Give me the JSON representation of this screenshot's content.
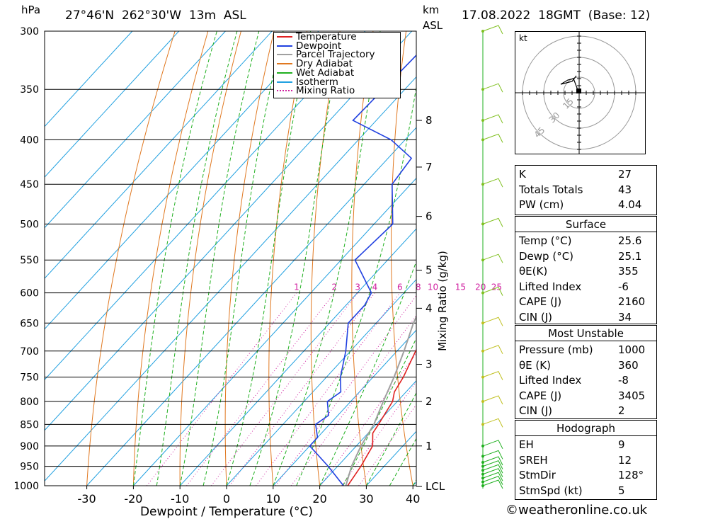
{
  "header": {
    "p_unit": "hPa",
    "location": "27°46'N  262°30'W  13m  ASL",
    "km_unit": "km",
    "km_unit2": "ASL",
    "datetime": "17.08.2022  18GMT  (Base: 12)"
  },
  "chart_data": {
    "type": "line",
    "subtype": "skew-T log-P diagram",
    "xlabel": "Dewpoint / Temperature (°C)",
    "ylabel": "hPa",
    "y_scale": "log",
    "x_ticks": [
      -30,
      -20,
      -10,
      0,
      10,
      20,
      30,
      40
    ],
    "xlim": [
      -40,
      40
    ],
    "ylim": [
      1000,
      300
    ],
    "pressure_levels": [
      300,
      350,
      400,
      450,
      500,
      550,
      600,
      650,
      700,
      750,
      800,
      850,
      900,
      950,
      1000
    ],
    "altitude_km": [
      {
        "km": "8",
        "p": 380
      },
      {
        "km": "7",
        "p": 430
      },
      {
        "km": "6",
        "p": 490
      },
      {
        "km": "5",
        "p": 565
      },
      {
        "km": "4",
        "p": 625
      },
      {
        "km": "3",
        "p": 725
      },
      {
        "km": "2",
        "p": 800
      },
      {
        "km": "1",
        "p": 900
      },
      {
        "km": "LCL",
        "p": 1002
      }
    ],
    "mixing_ratio_label": "Mixing Ratio (g/kg)",
    "mixing_ratio_lines": [
      "1",
      "2",
      "3",
      "4",
      "6",
      "8",
      "10",
      "15",
      "20",
      "25"
    ],
    "series": [
      {
        "name": "Temperature",
        "color": "#e02020",
        "points": [
          [
            26,
            1000
          ],
          [
            25,
            950
          ],
          [
            23.5,
            900
          ],
          [
            21,
            870
          ],
          [
            20.5,
            850
          ],
          [
            19,
            800
          ],
          [
            17.5,
            780
          ],
          [
            16.5,
            750
          ],
          [
            14,
            700
          ],
          [
            11.5,
            650
          ],
          [
            8,
            610
          ],
          [
            6,
            600
          ],
          [
            4,
            550
          ],
          [
            0,
            500
          ],
          [
            -4,
            450
          ],
          [
            -10,
            400
          ],
          [
            -14,
            370
          ],
          [
            -17,
            355
          ],
          [
            -22,
            300
          ]
        ]
      },
      {
        "name": "Dewpoint",
        "color": "#2040e0",
        "points": [
          [
            25.1,
            1000
          ],
          [
            18,
            950
          ],
          [
            10,
            900
          ],
          [
            10,
            880
          ],
          [
            7,
            850
          ],
          [
            8,
            830
          ],
          [
            5,
            800
          ],
          [
            6,
            780
          ],
          [
            3,
            750
          ],
          [
            -1,
            700
          ],
          [
            -6,
            650
          ],
          [
            -6,
            620
          ],
          [
            -7,
            600
          ],
          [
            -17,
            550
          ],
          [
            -16,
            500
          ],
          [
            -24,
            450
          ],
          [
            -25,
            420
          ],
          [
            -33,
            400
          ],
          [
            -45,
            380
          ],
          [
            -44,
            300
          ]
        ]
      },
      {
        "name": "Parcel Trajectory",
        "color": "#a0a0a0",
        "points": [
          [
            25.6,
            1000
          ],
          [
            23,
            950
          ],
          [
            21,
            900
          ],
          [
            19.5,
            850
          ],
          [
            17,
            800
          ],
          [
            14.5,
            750
          ],
          [
            11.5,
            700
          ],
          [
            8,
            650
          ],
          [
            5,
            600
          ],
          [
            1,
            550
          ],
          [
            -3,
            500
          ],
          [
            -8,
            450
          ],
          [
            -14,
            400
          ],
          [
            -20,
            370
          ],
          [
            -26,
            350
          ],
          [
            -34,
            300
          ]
        ]
      }
    ],
    "legend": {
      "placement": "top-center",
      "entries": [
        {
          "label": "Temperature",
          "color": "#e02020",
          "dash": "solid"
        },
        {
          "label": "Dewpoint",
          "color": "#2040e0",
          "dash": "solid"
        },
        {
          "label": "Parcel Trajectory",
          "color": "#a0a0a0",
          "dash": "solid"
        },
        {
          "label": "Dry Adiabat",
          "color": "#e07820",
          "dash": "solid"
        },
        {
          "label": "Wet Adiabat",
          "color": "#20b020",
          "dash": "solid"
        },
        {
          "label": "Isotherm",
          "color": "#20a0e0",
          "dash": "solid"
        },
        {
          "label": "Mixing Ratio",
          "color": "#d020a0",
          "dash": "dotted"
        }
      ]
    }
  },
  "hodograph": {
    "unit": "kt",
    "rings": [
      "15",
      "30",
      "45"
    ]
  },
  "indices": [
    {
      "label": "K",
      "value": "27"
    },
    {
      "label": "Totals Totals",
      "value": "43"
    },
    {
      "label": "PW (cm)",
      "value": "4.04"
    }
  ],
  "surface": {
    "title": "Surface",
    "rows": [
      {
        "label": "Temp (°C)",
        "value": "25.6"
      },
      {
        "label": "Dewp (°C)",
        "value": "25.1"
      },
      {
        "label": "θE(K)",
        "value": "355"
      },
      {
        "label": "Lifted Index",
        "value": "-6"
      },
      {
        "label": "CAPE (J)",
        "value": "2160"
      },
      {
        "label": "CIN (J)",
        "value": "34"
      }
    ]
  },
  "most_unstable": {
    "title": "Most Unstable",
    "rows": [
      {
        "label": "Pressure (mb)",
        "value": "1000"
      },
      {
        "label": "θE (K)",
        "value": "360"
      },
      {
        "label": "Lifted Index",
        "value": "-8"
      },
      {
        "label": "CAPE (J)",
        "value": "3405"
      },
      {
        "label": "CIN (J)",
        "value": "2"
      }
    ]
  },
  "hodograph_stats": {
    "title": "Hodograph",
    "rows": [
      {
        "label": "EH",
        "value": "9"
      },
      {
        "label": "SREH",
        "value": "12"
      },
      {
        "label": "StmDir",
        "value": "128°"
      },
      {
        "label": "StmSpd (kt)",
        "value": "5"
      }
    ]
  },
  "footer": {
    "credit": "©weatheronline.co.uk"
  }
}
